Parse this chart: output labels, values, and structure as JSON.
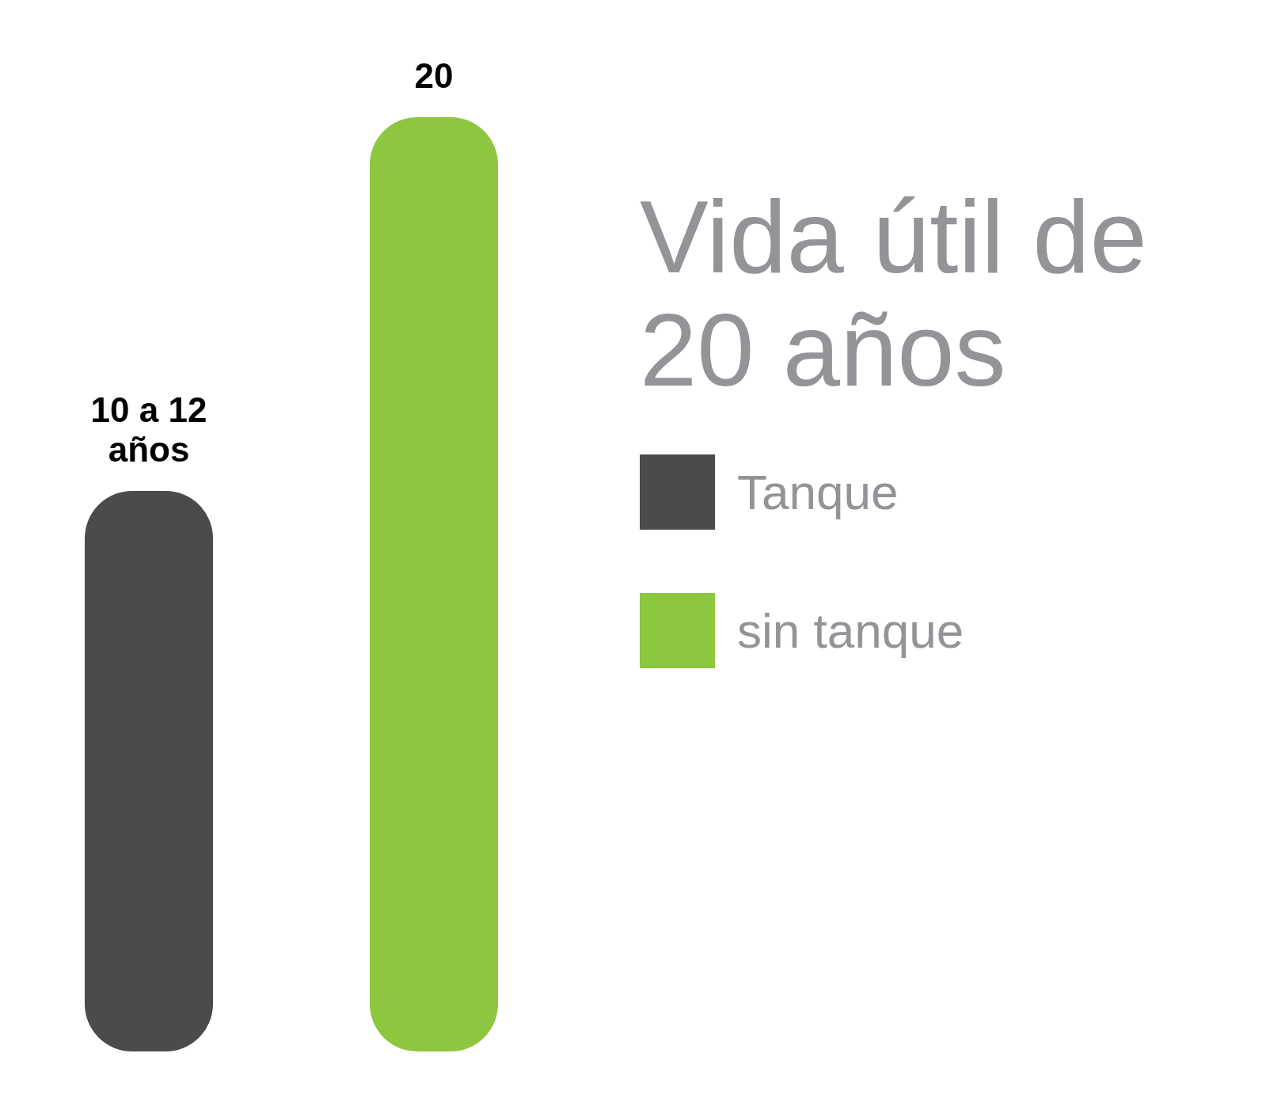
{
  "chart_data": {
    "type": "bar",
    "title": "Vida útil de 20 años",
    "categories": [
      null,
      null
    ],
    "stacked": true,
    "series": [
      {
        "name": "Tanque",
        "color": "#4a4b4d",
        "values": [
          12,
          null
        ],
        "value_labels": [
          "10 a 12 años",
          null
        ]
      },
      {
        "name": "sin tanque",
        "color": "#8dc63f",
        "values": [
          null,
          20
        ],
        "value_labels": [
          null,
          "20"
        ]
      }
    ],
    "legend": "right"
  }
}
